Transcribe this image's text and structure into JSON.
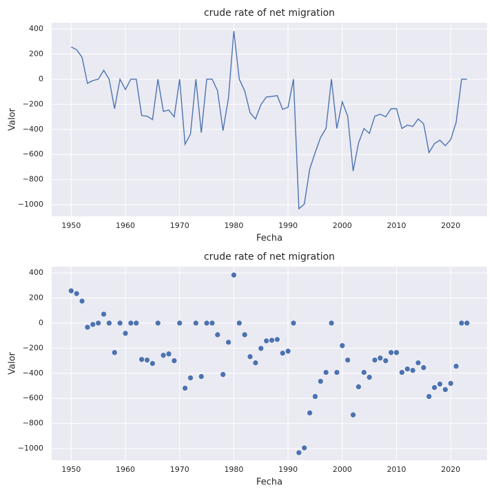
{
  "chart_data": [
    {
      "type": "line",
      "title": "crude rate of net migration",
      "xlabel": "Fecha",
      "ylabel": "Valor",
      "color": "#4c72b0",
      "grid": true,
      "x": [
        1950,
        1951,
        1952,
        1953,
        1954,
        1955,
        1956,
        1957,
        1958,
        1959,
        1960,
        1961,
        1962,
        1963,
        1964,
        1965,
        1966,
        1967,
        1968,
        1969,
        1970,
        1971,
        1972,
        1973,
        1974,
        1975,
        1976,
        1977,
        1978,
        1979,
        1980,
        1981,
        1982,
        1983,
        1984,
        1985,
        1986,
        1987,
        1988,
        1989,
        1990,
        1991,
        1992,
        1993,
        1994,
        1995,
        1996,
        1997,
        1998,
        1999,
        2000,
        2001,
        2002,
        2003,
        2004,
        2005,
        2006,
        2007,
        2008,
        2009,
        2010,
        2011,
        2012,
        2013,
        2014,
        2015,
        2016,
        2017,
        2018,
        2019,
        2020,
        2021,
        2022,
        2023
      ],
      "values": [
        257,
        235,
        175,
        -33,
        -11,
        0,
        71,
        0,
        -235,
        0,
        -82,
        0,
        0,
        -290,
        -295,
        -322,
        0,
        -257,
        -246,
        -300,
        0,
        -519,
        -437,
        0,
        -426,
        0,
        0,
        -93,
        -410,
        -153,
        383,
        0,
        -93,
        -268,
        -317,
        -202,
        -142,
        -137,
        -131,
        -240,
        -224,
        0,
        -1033,
        -995,
        -716,
        -585,
        -464,
        -393,
        0,
        -393,
        -180,
        -295,
        -732,
        -508,
        -393,
        -432,
        -295,
        -279,
        -300,
        -235,
        -235,
        -393,
        -366,
        -377,
        -317,
        -355,
        -585,
        -514,
        -486,
        -530,
        -481,
        -344,
        0,
        0
      ],
      "xlim": [
        1946.4,
        2026.7
      ],
      "xticks": [
        1950,
        1960,
        1970,
        1980,
        1990,
        2000,
        2010,
        2020
      ],
      "ylim": [
        -1093,
        450
      ],
      "yticks": [
        {
          "value": -1000,
          "label": "−1000"
        },
        {
          "value": -800,
          "label": "−800"
        },
        {
          "value": -600,
          "label": "−600"
        },
        {
          "value": -400,
          "label": "−400"
        },
        {
          "value": -200,
          "label": "−200"
        },
        0,
        200,
        400
      ]
    },
    {
      "type": "scatter",
      "title": "crude rate of net migration",
      "xlabel": "Fecha",
      "ylabel": "Valor",
      "color": "#4c72b0",
      "grid": true,
      "x": [
        1950,
        1951,
        1952,
        1953,
        1954,
        1955,
        1956,
        1957,
        1958,
        1959,
        1960,
        1961,
        1962,
        1963,
        1964,
        1965,
        1966,
        1967,
        1968,
        1969,
        1970,
        1971,
        1972,
        1973,
        1974,
        1975,
        1976,
        1977,
        1978,
        1979,
        1980,
        1981,
        1982,
        1983,
        1984,
        1985,
        1986,
        1987,
        1988,
        1989,
        1990,
        1991,
        1992,
        1993,
        1994,
        1995,
        1996,
        1997,
        1998,
        1999,
        2000,
        2001,
        2002,
        2003,
        2004,
        2005,
        2006,
        2007,
        2008,
        2009,
        2010,
        2011,
        2012,
        2013,
        2014,
        2015,
        2016,
        2017,
        2018,
        2019,
        2020,
        2021,
        2022,
        2023
      ],
      "values": [
        257,
        235,
        175,
        -33,
        -11,
        0,
        71,
        0,
        -235,
        0,
        -82,
        0,
        0,
        -290,
        -295,
        -322,
        0,
        -257,
        -246,
        -300,
        0,
        -519,
        -437,
        0,
        -426,
        0,
        0,
        -93,
        -410,
        -153,
        383,
        0,
        -93,
        -268,
        -317,
        -202,
        -142,
        -137,
        -131,
        -240,
        -224,
        0,
        -1033,
        -995,
        -716,
        -585,
        -464,
        -393,
        0,
        -393,
        -180,
        -295,
        -732,
        -508,
        -393,
        -432,
        -295,
        -279,
        -300,
        -235,
        -235,
        -393,
        -366,
        -377,
        -317,
        -355,
        -585,
        -514,
        -486,
        -530,
        -481,
        -344,
        0,
        0
      ],
      "xlim": [
        1946.4,
        2026.7
      ],
      "xticks": [
        1950,
        1960,
        1970,
        1980,
        1990,
        2000,
        2010,
        2020
      ],
      "ylim": [
        -1093,
        450
      ],
      "yticks": [
        {
          "value": -1000,
          "label": "−1000"
        },
        {
          "value": -800,
          "label": "−800"
        },
        {
          "value": -600,
          "label": "−600"
        },
        {
          "value": -400,
          "label": "−400"
        },
        {
          "value": -200,
          "label": "−200"
        },
        0,
        200,
        400
      ]
    }
  ]
}
